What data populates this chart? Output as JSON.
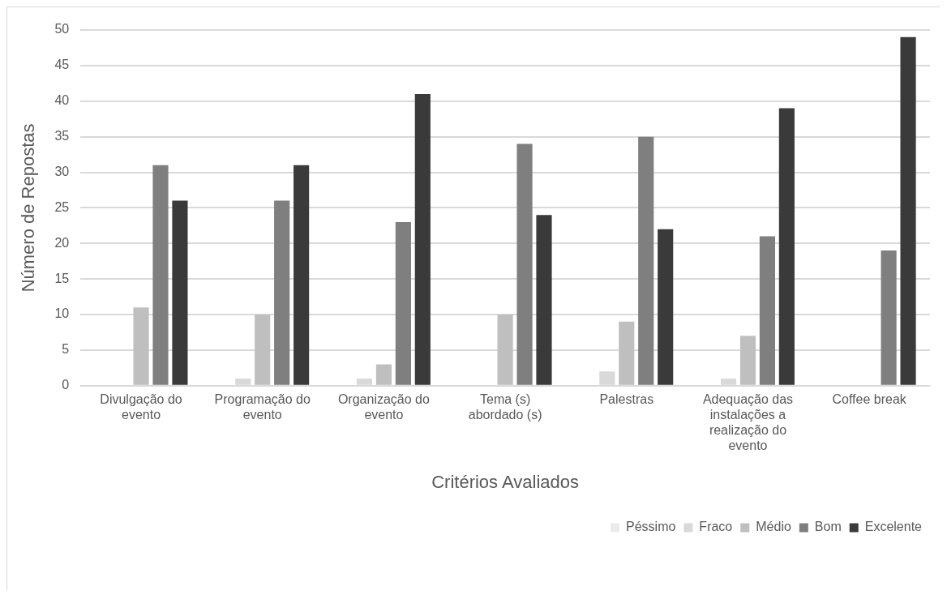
{
  "chart_data": {
    "type": "bar",
    "xlabel": "Critérios Avaliados",
    "ylabel": "Número de Repostas",
    "categories": [
      "Divulgação do evento",
      "Programação do evento",
      "Organização do evento",
      "Tema (s) abordado (s)",
      "Palestras",
      "Adequação das instalações a realização do evento",
      "Coffee break"
    ],
    "series": [
      {
        "name": "Péssimo",
        "color": "#ebebeb",
        "values": [
          0,
          0,
          0,
          0,
          0,
          0,
          0
        ]
      },
      {
        "name": "Fraco",
        "color": "#d9d9d9",
        "values": [
          0,
          1,
          1,
          0,
          2,
          1,
          0
        ]
      },
      {
        "name": "Médio",
        "color": "#bfbfbf",
        "values": [
          11,
          10,
          3,
          10,
          9,
          7,
          0
        ]
      },
      {
        "name": "Bom",
        "color": "#7f7f7f",
        "values": [
          31,
          26,
          23,
          34,
          35,
          21,
          19
        ]
      },
      {
        "name": "Excelente",
        "color": "#3a3a3a",
        "values": [
          26,
          31,
          41,
          24,
          22,
          39,
          49
        ]
      }
    ],
    "ylim": [
      0,
      50
    ],
    "yticks": [
      0,
      5,
      10,
      15,
      20,
      25,
      30,
      35,
      40,
      45,
      50
    ],
    "grid": "y",
    "legend": "bottom right"
  }
}
